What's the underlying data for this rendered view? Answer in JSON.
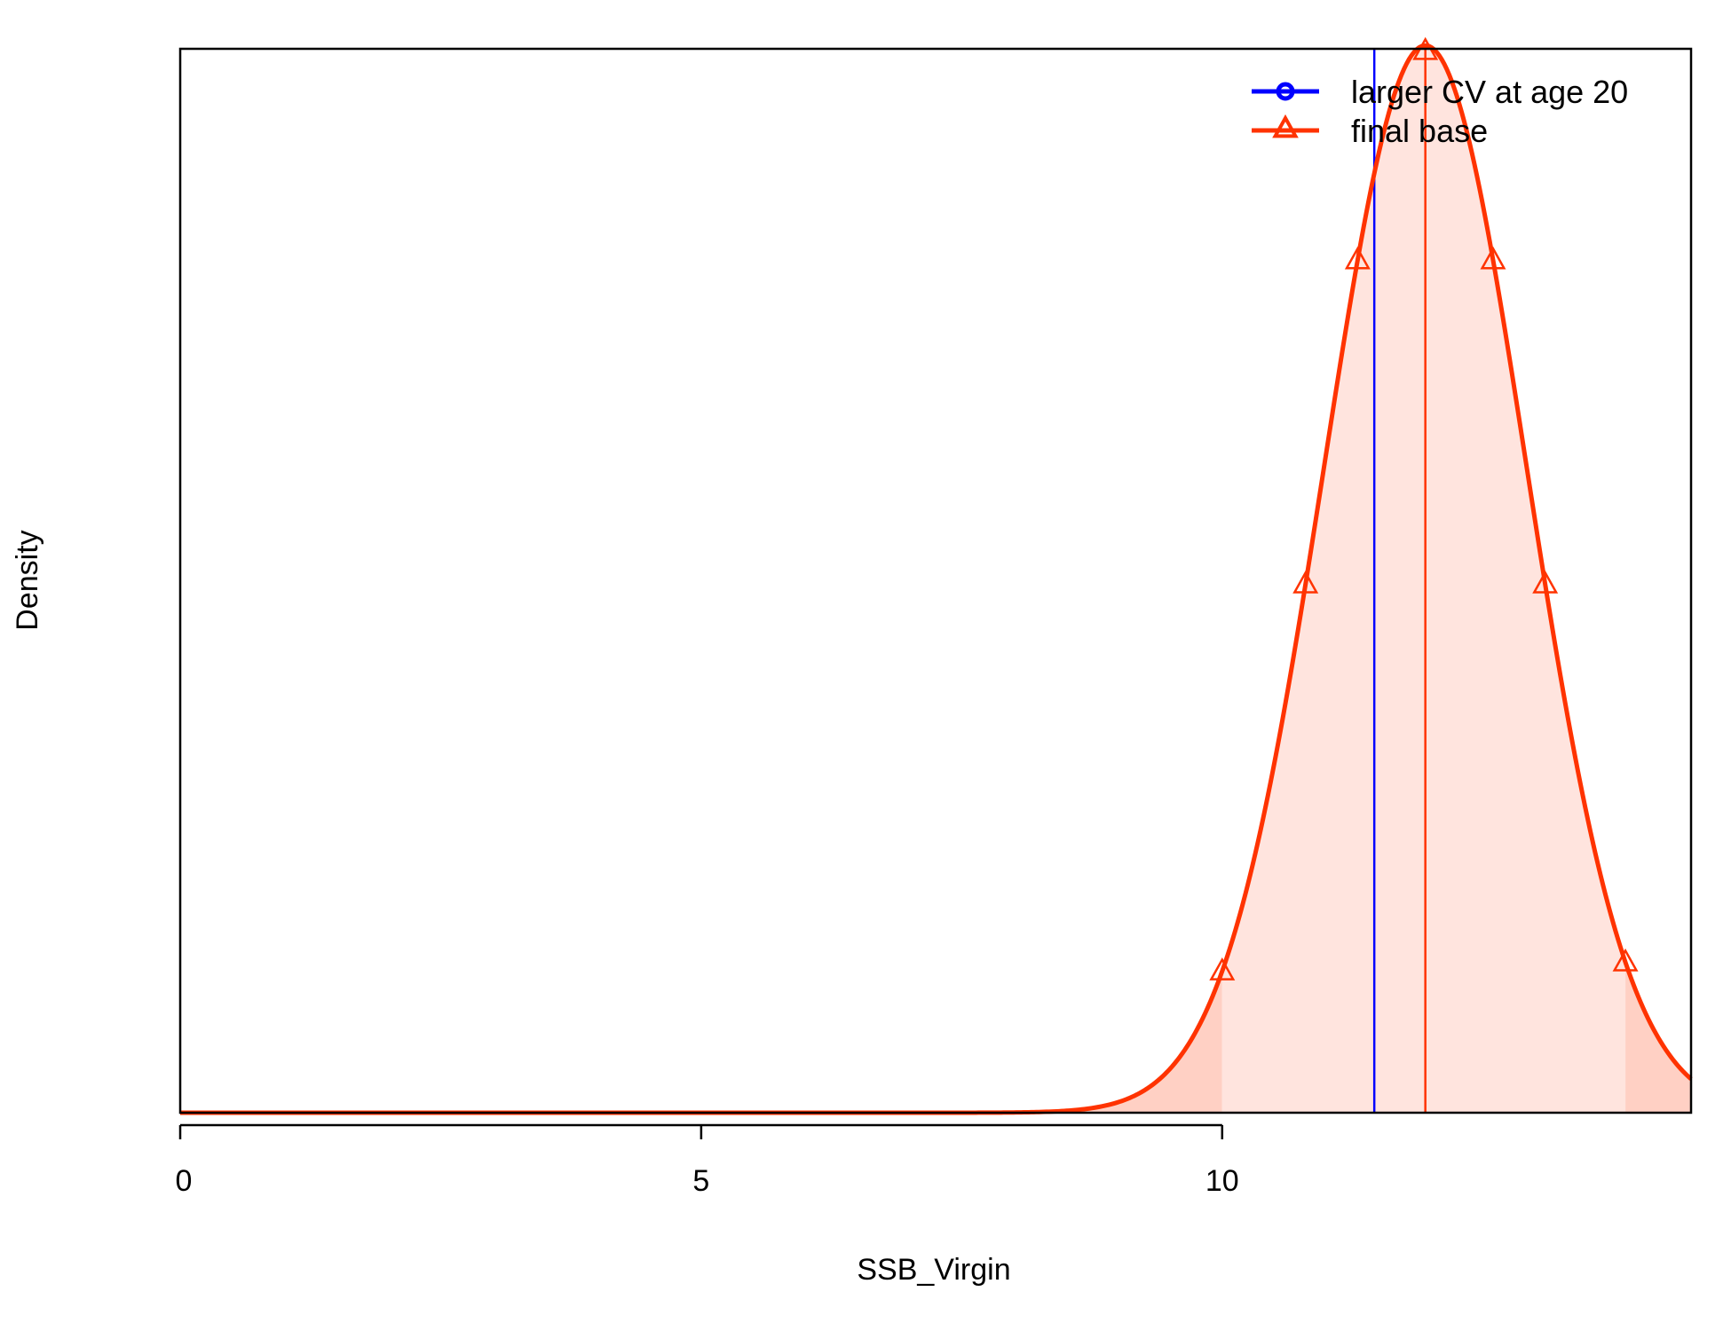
{
  "chart_data": {
    "type": "area",
    "title": "",
    "xlabel": "SSB_Virgin",
    "ylabel": "Density",
    "xlim": [
      0,
      14.5
    ],
    "ylim": [
      0,
      0.41
    ],
    "x_ticks": [
      0,
      5,
      10
    ],
    "x_tick_labels": [
      "0",
      "5",
      "10"
    ],
    "y_ticks_shown": false,
    "grid": false,
    "legend_position": "top-right",
    "series": [
      {
        "name": "larger CV at age 20",
        "color": "#0000ff",
        "marker": "circle",
        "estimate": 11.46,
        "curve_visible": false
      },
      {
        "name": "final base",
        "color": "#ff3300",
        "fill_color": "#ffe4de",
        "tail_fill_color": "#ffd0c4",
        "marker": "triangle",
        "estimate": 11.95,
        "sd": 0.97,
        "ci_low": 10.0,
        "ci_high": 13.87,
        "marker_x": [
          10.0,
          10.8,
          11.3,
          12.6,
          13.1,
          13.87
        ]
      }
    ]
  }
}
